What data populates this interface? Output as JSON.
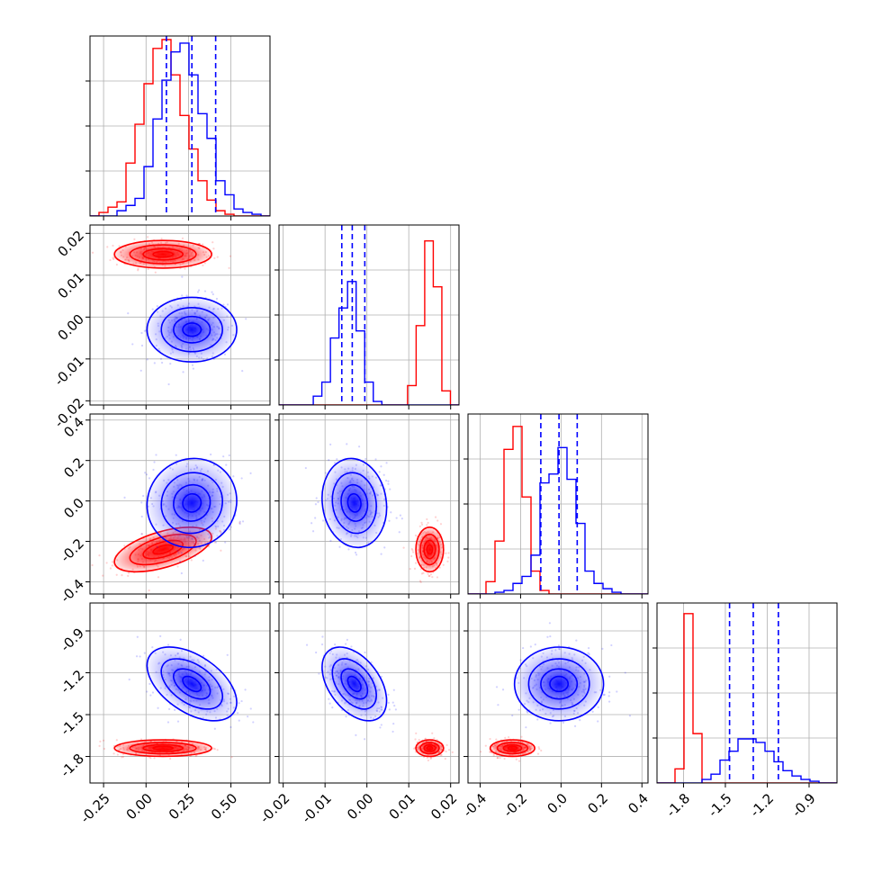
{
  "chart_data": {
    "type": "corner",
    "parameters": 4,
    "colors": {
      "red": "#ff0000",
      "blue": "#0000ff",
      "grid": "#b0b0b0",
      "axes": "#000000"
    },
    "grid": true,
    "axes": [
      {
        "range": [
          -0.33,
          0.73
        ],
        "ticks": [
          "-0.25",
          "0.00",
          "0.25",
          "0.50"
        ],
        "tick_values": [
          -0.25,
          0.0,
          0.25,
          0.5
        ]
      },
      {
        "range": [
          -0.021,
          0.022
        ],
        "ticks": [
          "-0.02",
          "-0.01",
          "0.00",
          "0.01",
          "0.02"
        ],
        "tick_values": [
          -0.02,
          -0.01,
          0.0,
          0.01,
          0.02
        ]
      },
      {
        "range": [
          -0.46,
          0.43
        ],
        "ticks": [
          "-0.4",
          "-0.2",
          "0.0",
          "0.2",
          "0.4"
        ],
        "tick_values": [
          -0.4,
          -0.2,
          0.0,
          0.2,
          0.4
        ]
      },
      {
        "range": [
          -1.99,
          -0.7
        ],
        "ticks": [
          "-1.8",
          "-1.5",
          "-1.2",
          "-0.9"
        ],
        "tick_values": [
          -1.8,
          -1.5,
          -1.2,
          -0.9
        ]
      }
    ],
    "series": [
      {
        "color": "red",
        "marginals": [
          {
            "edges": [
              -0.33,
              0.73
            ],
            "counts": [
              0.0,
              0.02,
              0.05,
              0.08,
              0.3,
              0.52,
              0.75,
              0.95,
              1.0,
              0.8,
              0.57,
              0.38,
              0.2,
              0.09,
              0.03,
              0.01,
              0.0,
              0.0,
              0.0,
              0.0
            ]
          },
          {
            "edges": [
              -0.021,
              0.022
            ],
            "counts": [
              0.0,
              0.0,
              0.0,
              0.0,
              0.0,
              0.0,
              0.0,
              0.0,
              0.0,
              0.0,
              0.0,
              0.0,
              0.0,
              0.0,
              0.0,
              0.11,
              0.45,
              0.93,
              0.67,
              0.08,
              0.0
            ]
          },
          {
            "edges": [
              -0.46,
              0.43
            ],
            "counts": [
              0.0,
              0.0,
              0.07,
              0.3,
              0.82,
              0.95,
              0.55,
              0.13,
              0.02,
              0.0,
              0.0,
              0.0,
              0.0,
              0.0,
              0.0,
              0.0,
              0.0,
              0.0,
              0.0,
              0.0
            ]
          },
          {
            "edges": [
              -1.99,
              -0.7
            ],
            "counts": [
              0.0,
              0.0,
              0.08,
              0.96,
              0.28,
              0.0,
              0.0,
              0.0,
              0.0,
              0.0,
              0.0,
              0.0,
              0.0,
              0.0,
              0.0,
              0.0,
              0.0,
              0.0,
              0.0,
              0.0
            ]
          }
        ],
        "means": [
          0.1,
          0.015,
          -0.24,
          -1.74
        ],
        "sigmas": [
          0.13,
          0.0015,
          0.05,
          0.027
        ]
      },
      {
        "color": "blue",
        "marginals": [
          {
            "edges": [
              -0.33,
              0.73
            ],
            "counts": [
              0.0,
              0.0,
              0.0,
              0.03,
              0.06,
              0.1,
              0.28,
              0.55,
              0.77,
              0.93,
              0.98,
              0.8,
              0.58,
              0.44,
              0.2,
              0.12,
              0.04,
              0.02,
              0.01,
              0.0
            ]
          },
          {
            "edges": [
              -0.021,
              0.022
            ],
            "counts": [
              0.0,
              0.0,
              0.0,
              0.0,
              0.05,
              0.13,
              0.38,
              0.55,
              0.7,
              0.42,
              0.13,
              0.02,
              0.0,
              0.0,
              0.0,
              0.0,
              0.0,
              0.0,
              0.0,
              0.0,
              0.0
            ]
          },
          {
            "edges": [
              -0.46,
              0.43
            ],
            "counts": [
              0.0,
              0.0,
              0.0,
              0.01,
              0.02,
              0.06,
              0.1,
              0.22,
              0.63,
              0.68,
              0.83,
              0.65,
              0.4,
              0.13,
              0.06,
              0.03,
              0.01,
              0.0,
              0.0,
              0.0
            ]
          },
          {
            "edges": [
              -1.99,
              -0.7
            ],
            "counts": [
              0.0,
              0.0,
              0.0,
              0.0,
              0.0,
              0.02,
              0.05,
              0.13,
              0.18,
              0.25,
              0.25,
              0.23,
              0.18,
              0.12,
              0.07,
              0.04,
              0.02,
              0.01,
              0.0,
              0.0
            ]
          }
        ],
        "quantiles": [
          [
            0.12,
            0.27,
            0.41
          ],
          [
            -0.006,
            -0.0035,
            -0.0005
          ],
          [
            -0.1,
            -0.01,
            0.08
          ],
          [
            -1.47,
            -1.3,
            -1.12
          ]
        ],
        "means": [
          0.27,
          -0.003,
          -0.01,
          -1.28
        ],
        "sigmas": [
          0.12,
          0.0035,
          0.1,
          0.12
        ]
      }
    ],
    "correlations": {
      "red": {
        "1-0": 0.0,
        "2-0": 0.55,
        "2-1": 0.0,
        "3-0": 0.0,
        "3-1": 0.0,
        "3-2": 0.0
      },
      "blue": {
        "1-0": 0.0,
        "2-0": 0.05,
        "2-1": -0.1,
        "3-0": -0.5,
        "3-1": -0.45,
        "3-2": 0.0
      }
    }
  }
}
